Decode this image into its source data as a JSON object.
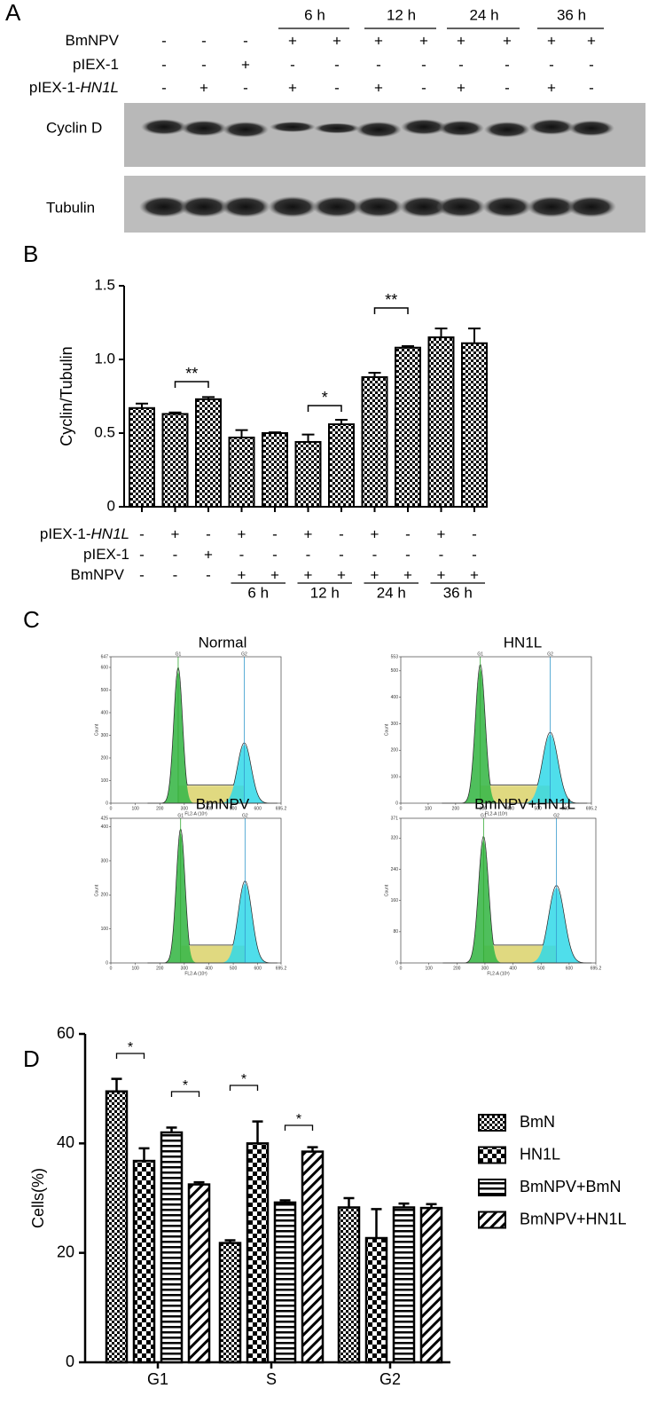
{
  "panel_a": {
    "label": "A",
    "times": [
      "6 h",
      "12 h",
      "24 h",
      "36 h"
    ],
    "rows": [
      {
        "name": [
          "BmNPV"
        ],
        "signs": [
          "-",
          "-",
          "-",
          "+",
          "+",
          "+",
          "+",
          "+",
          "+",
          "+",
          "+"
        ]
      },
      {
        "name": [
          "pIEX-1"
        ],
        "signs": [
          "-",
          "-",
          "+",
          "-",
          "-",
          "-",
          "-",
          "-",
          "-",
          "-",
          "-"
        ]
      },
      {
        "name": [
          "pIEX-1-",
          "HN1L"
        ],
        "signs": [
          "-",
          "+",
          "-",
          "+",
          "-",
          "+",
          "-",
          "+",
          "-",
          "+",
          "-"
        ]
      }
    ],
    "blots": [
      "Cyclin D",
      "Tubulin"
    ]
  },
  "chart_data": [
    {
      "type": "bar",
      "label": "B",
      "ylabel": "Cyclin/Tubulin",
      "color": "#000000",
      "values": [
        0.67,
        0.63,
        0.73,
        0.47,
        0.5,
        0.44,
        0.56,
        0.88,
        1.08,
        1.15,
        1.11
      ],
      "errors": [
        0.03,
        0.01,
        0.015,
        0.05,
        0.005,
        0.05,
        0.03,
        0.03,
        0.01,
        0.06,
        0.1
      ],
      "ylim": [
        0,
        1.5
      ],
      "yticks": [
        0,
        0.5,
        {
          "value": 1,
          "label": "1.0"
        },
        1.5
      ],
      "annotations": [
        "**",
        "*",
        "**"
      ],
      "conditions": [
        {
          "name": [
            "pIEX-1-",
            "HN1L"
          ],
          "signs": [
            "-",
            "+",
            "-",
            "+",
            "-",
            "+",
            "-",
            "+",
            "-",
            "+",
            "-"
          ]
        },
        {
          "name": [
            "pIEX-1"
          ],
          "signs": [
            "-",
            "-",
            "+",
            "-",
            "-",
            "-",
            "-",
            "-",
            "-",
            "-",
            "-"
          ]
        },
        {
          "name": [
            "BmNPV"
          ],
          "signs": [
            "-",
            "-",
            "-",
            "+",
            "+",
            "+",
            "+",
            "+",
            "+",
            "+",
            "+"
          ]
        }
      ],
      "times": [
        "6 h",
        "12 h",
        "24 h",
        "36 h"
      ]
    },
    {
      "type": "bar",
      "label": "D",
      "ylabel": "Cells(%)",
      "categories": [
        "G1",
        "S",
        "G2"
      ],
      "ylim": [
        0,
        60
      ],
      "yticks": [
        0,
        20,
        40,
        60
      ],
      "annotations": [
        "*",
        "*",
        "*",
        "*"
      ],
      "series": [
        {
          "name": "BmN",
          "pattern": "check-fine",
          "values": [
            49.5,
            21.8,
            28.3
          ],
          "errors": [
            2.3,
            0.5,
            1.7
          ]
        },
        {
          "name": "HN1L",
          "pattern": "check-big",
          "values": [
            36.8,
            40,
            22.7
          ],
          "errors": [
            2.3,
            4,
            5.3
          ]
        },
        {
          "name": "BmNPV+BmN",
          "pattern": "hlines",
          "values": [
            42,
            29.2,
            28.3
          ],
          "errors": [
            0.9,
            0.4,
            0.7
          ]
        },
        {
          "name": "BmNPV+HN1L",
          "pattern": "diag",
          "values": [
            32.5,
            38.5,
            28.2
          ],
          "errors": [
            0.4,
            0.8,
            0.7
          ]
        }
      ]
    }
  ],
  "panel_c": {
    "label": "C",
    "xlabel": "FL2-A (10³)",
    "ylabel": "Count",
    "gates": [
      "G1",
      "G2"
    ],
    "xlim": [
      0,
      695.2
    ],
    "xticks": [
      0,
      100,
      200,
      300,
      400,
      500,
      600,
      695.2
    ],
    "plots": [
      {
        "title": "Normal",
        "ylim": [
          0,
          647
        ],
        "yticks": [
          0,
          100,
          200,
          300,
          400,
          500,
          600,
          647
        ]
      },
      {
        "title": "HN1L",
        "ylim": [
          0,
          553
        ],
        "yticks": [
          0,
          100,
          200,
          300,
          400,
          500,
          553
        ]
      },
      {
        "title": "BmNPV",
        "ylim": [
          0,
          425
        ],
        "yticks": [
          0,
          100,
          200,
          300,
          400,
          425
        ]
      },
      {
        "title": "BmNPV+HN1L",
        "ylim": [
          0,
          371
        ],
        "yticks": [
          0,
          80,
          160,
          240,
          320,
          371
        ]
      }
    ]
  }
}
